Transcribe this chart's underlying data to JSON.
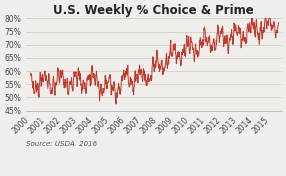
{
  "title": "U.S. Weekly % Choice & Prime",
  "source_label": "Source: USDA  2016",
  "ylim": [
    45,
    80
  ],
  "yticks": [
    45,
    50,
    55,
    60,
    65,
    70,
    75,
    80
  ],
  "ytick_labels": [
    "45%",
    "50%",
    "55%",
    "60%",
    "65%",
    "70%",
    "75%",
    "80%"
  ],
  "xtick_years": [
    2000,
    2001,
    2002,
    2003,
    2004,
    2005,
    2006,
    2007,
    2008,
    2009,
    2010,
    2011,
    2012,
    2013,
    2014,
    2015
  ],
  "line_color": "#c0392b",
  "background_color": "#f0eeeb",
  "plot_bg_color": "#f0eeeb",
  "grid_color": "#d0cdc9",
  "title_fontsize": 8.5,
  "tick_fontsize": 5.5,
  "source_fontsize": 5.0,
  "xlim_start": 1999.7,
  "xlim_end": 2015.7
}
